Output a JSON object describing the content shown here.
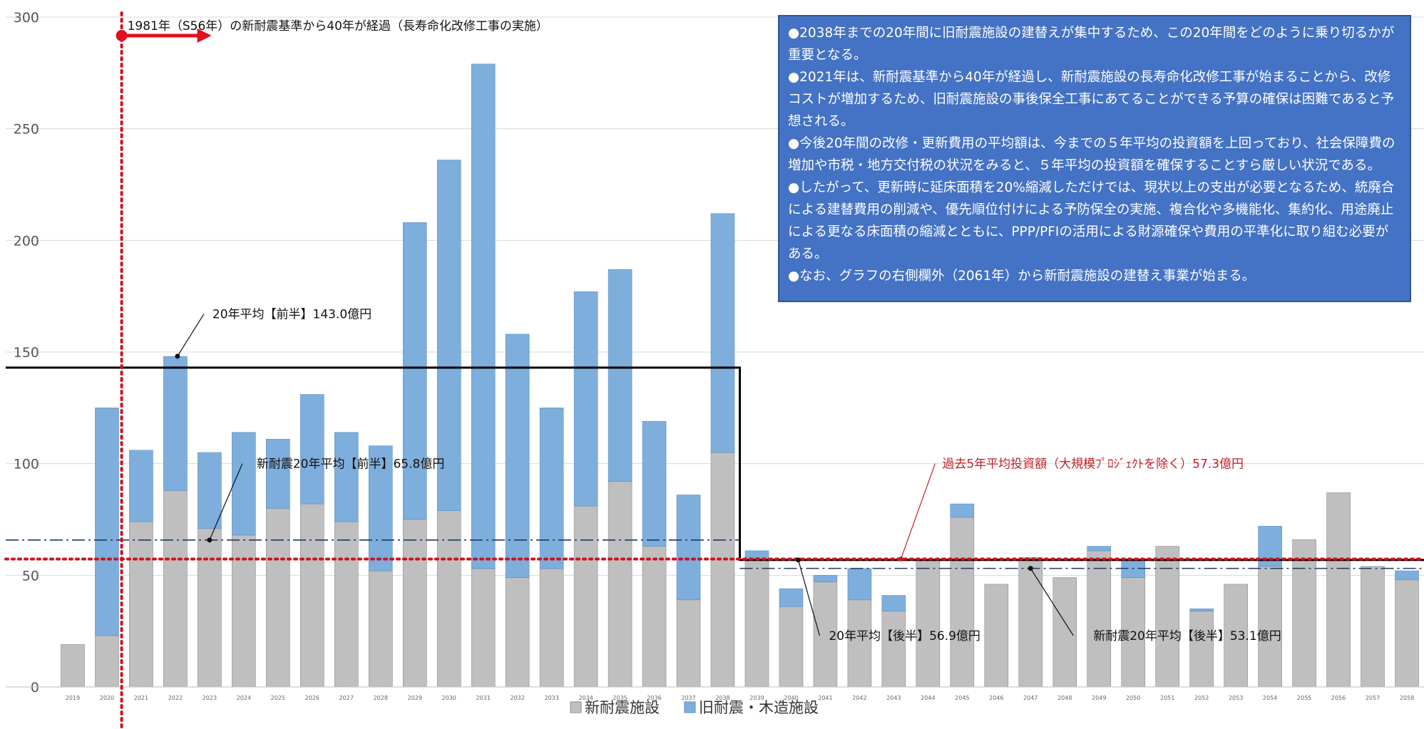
{
  "chart_data": {
    "type": "bar",
    "stacked": true,
    "categories": [
      "2019",
      "2020",
      "2021",
      "2022",
      "2023",
      "2024",
      "2025",
      "2026",
      "2027",
      "2028",
      "2029",
      "2030",
      "2031",
      "2032",
      "2033",
      "2034",
      "2035",
      "2036",
      "2037",
      "2038",
      "2039",
      "2040",
      "2041",
      "2042",
      "2043",
      "2044",
      "2045",
      "2046",
      "2047",
      "2048",
      "2049",
      "2050",
      "2051",
      "2052",
      "2053",
      "2054",
      "2055",
      "2056",
      "2057",
      "2058"
    ],
    "series": [
      {
        "name": "新耐震施設",
        "color": "#bfbfbf",
        "values": [
          19,
          23,
          74,
          88,
          71,
          68,
          80,
          82,
          74,
          52,
          75,
          79,
          53,
          49,
          53,
          81,
          92,
          63,
          39,
          105,
          58,
          36,
          47,
          39,
          34,
          57,
          76,
          46,
          58,
          49,
          61,
          49,
          63,
          34,
          46,
          54,
          66,
          87,
          54,
          48
        ]
      },
      {
        "name": "旧耐震・木造施設",
        "color": "#7eaedc",
        "values": [
          0,
          102,
          32,
          60,
          34,
          46,
          31,
          49,
          40,
          56,
          133,
          157,
          226,
          109,
          72,
          96,
          95,
          56,
          47,
          107,
          3,
          8,
          3,
          14,
          7,
          0,
          6,
          0,
          0,
          0,
          2,
          8,
          0,
          1,
          0,
          18,
          0,
          0,
          0,
          4
        ]
      }
    ],
    "ylim": [
      0,
      300
    ],
    "yticks": [
      0,
      50,
      100,
      150,
      200,
      250,
      300
    ],
    "grid": true,
    "legend": "bottom",
    "reference_lines": [
      {
        "label": "20年平均【前半】143.0億円",
        "value": 143.0,
        "from": "2019",
        "to": "2038",
        "style": "solid-black"
      },
      {
        "label": "20年平均【後半】56.9億円",
        "value": 56.9,
        "from": "2039",
        "to": "2058",
        "style": "solid-black"
      },
      {
        "label": "新耐震20年平均【前半】65.8億円",
        "value": 65.8,
        "from": "2019",
        "to": "2038",
        "style": "dash-dot"
      },
      {
        "label": "新耐震20年平均【後半】53.1億円",
        "value": 53.1,
        "from": "2039",
        "to": "2058",
        "style": "dash-dot"
      },
      {
        "label": "過去5年平均投資額（大規模ﾌﾟﾛｼﾞｪｸﾄを除く）57.3億円",
        "value": 57.3,
        "style": "dotted-red"
      }
    ],
    "vertical_marker": {
      "label": "1981年（S56年）の新耐震基準から40年が経過（長寿命化改修工事の実施）",
      "at": "2020-2021"
    }
  },
  "notes": [
    "●2038年までの20年間に旧耐震施設の建替えが集中するため、この20年間をどのように乗り切るかが重要となる。",
    "●2021年は、新耐震基準から40年が経過し、新耐震施設の長寿命化改修工事が始まることから、改修コストが増加するため、旧耐震施設の事後保全工事にあてることができる予算の確保は困難であると予想される。",
    "●今後20年間の改修・更新費用の平均額は、今までの５年平均の投資額を上回っており、社会保障費の増加や市税・地方交付税の状況をみると、５年平均の投資額を確保することすら厳しい状況である。",
    "●したがって、更新時に延床面積を20%縮減しただけでは、現状以上の支出が必要となるため、統廃合による建替費用の削減や、優先順位付けによる予防保全の実施、複合化や多機能化、集約化、用途廃止による更なる床面積の縮減とともに、PPP/PFIの活用による財源確保や費用の平準化に取り組む必要がある。",
    "●なお、グラフの右側欄外（2061年）から新耐震施設の建替え事業が始まる。"
  ]
}
